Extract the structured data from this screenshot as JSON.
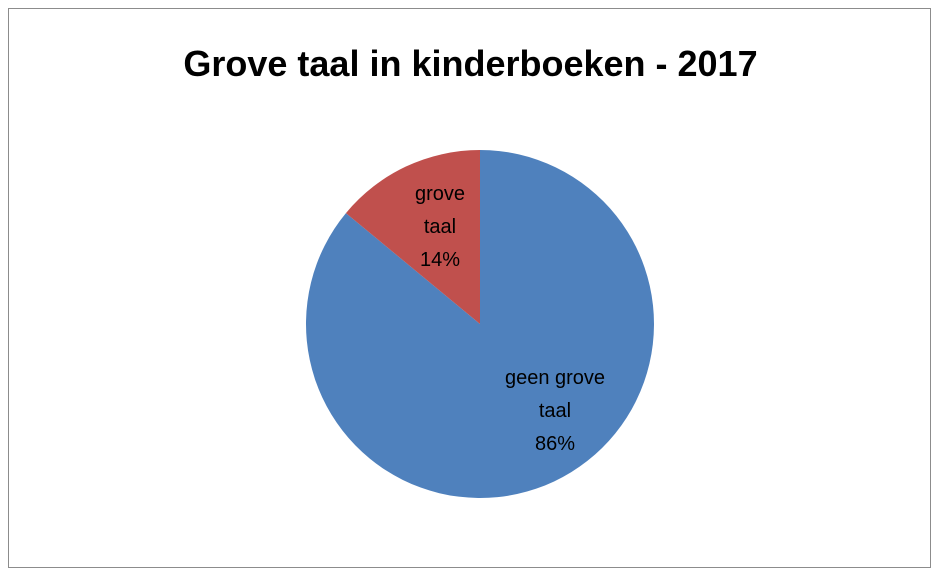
{
  "chart_data": {
    "type": "pie",
    "title": "Grove taal in kinderboeken - 2017",
    "slices": [
      {
        "label_lines": [
          "geen grove",
          "taal"
        ],
        "value": 86,
        "percent_label": "86%",
        "color": "#4f81bd"
      },
      {
        "label_lines": [
          "grove",
          "taal"
        ],
        "value": 14,
        "percent_label": "14%",
        "color": "#c0504d"
      }
    ],
    "legend": "none"
  }
}
